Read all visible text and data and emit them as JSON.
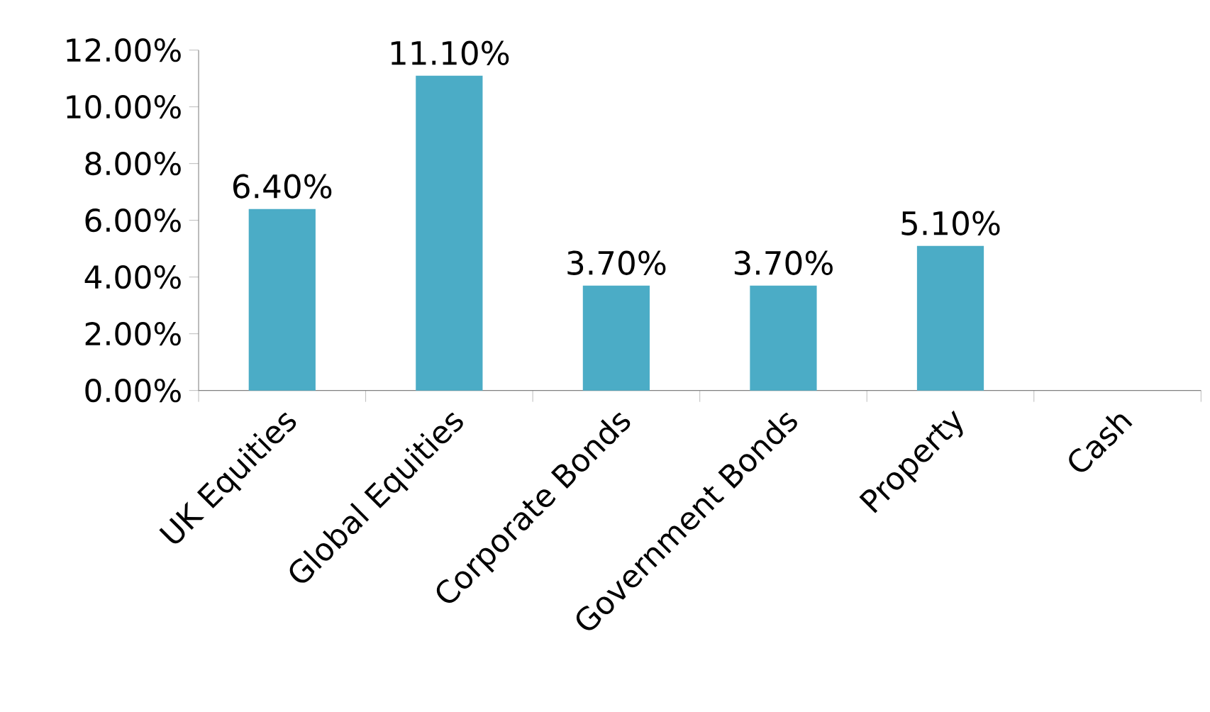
{
  "chart_data": {
    "type": "bar",
    "categories": [
      "UK Equities",
      "Global Equities",
      "Corporate Bonds",
      "Government Bonds",
      "Property",
      "Cash"
    ],
    "values": [
      6.4,
      11.1,
      3.7,
      3.7,
      5.1,
      0
    ],
    "value_labels": [
      "6.40%",
      "11.10%",
      "3.70%",
      "3.70%",
      "5.10%",
      null
    ],
    "color": "#4bacc6",
    "ylim": [
      0,
      12
    ],
    "yticks": [
      {
        "value": 0,
        "label": "0.00%"
      },
      {
        "value": 2,
        "label": "2.00%"
      },
      {
        "value": 4,
        "label": "4.00%"
      },
      {
        "value": 6,
        "label": "6.00%"
      },
      {
        "value": 8,
        "label": "8.00%"
      },
      {
        "value": 10,
        "label": "10.00%"
      },
      {
        "value": 12,
        "label": "12.00%"
      }
    ],
    "grid": false,
    "legend": false
  }
}
